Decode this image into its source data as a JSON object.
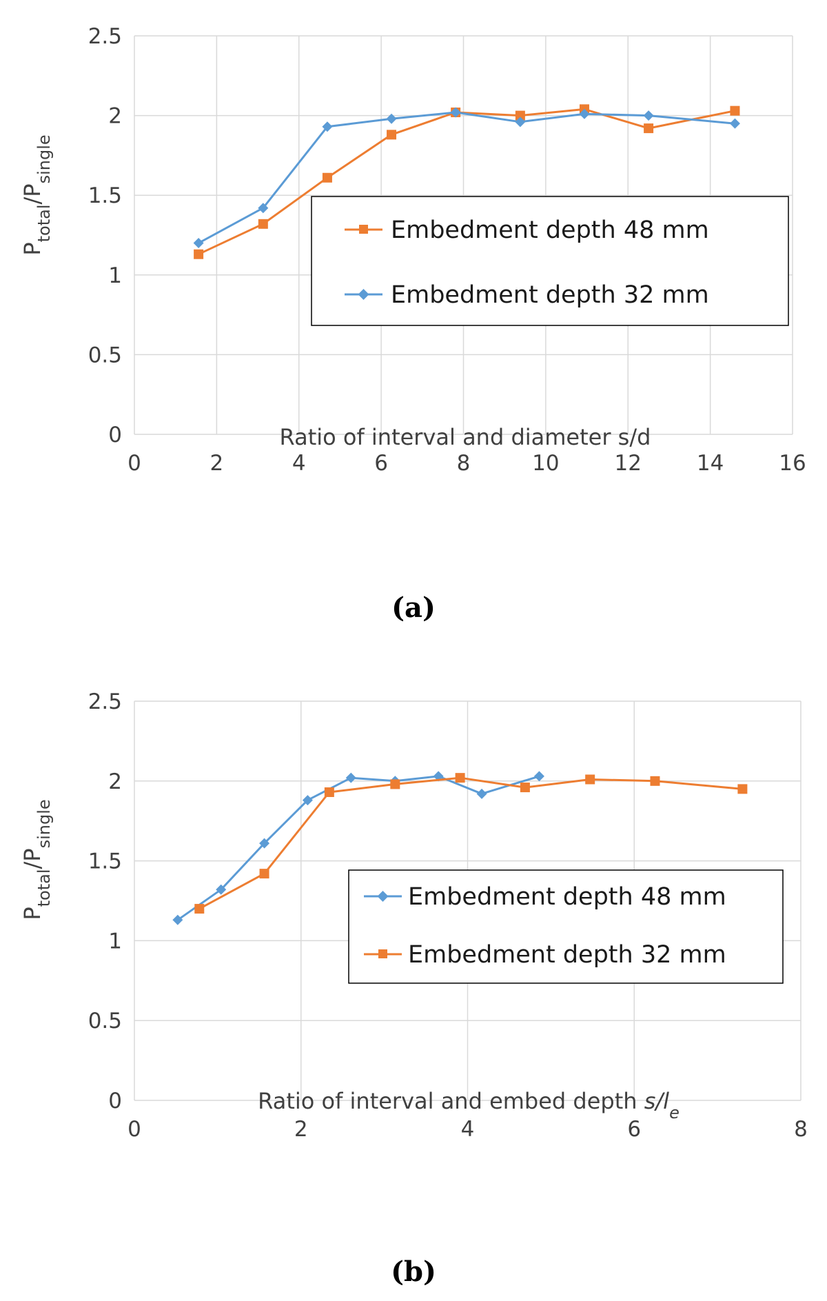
{
  "chart_data": [
    {
      "type": "line",
      "panel_label": "a",
      "panel_label_text": "(a)",
      "xlabel": "Ratio of interval and diameter s/d",
      "ylabel": "P_total/P_single",
      "ylabel_parts": {
        "main": "P",
        "sub1": "total",
        "slash": "/P",
        "sub2": "single"
      },
      "xlim": [
        0,
        16
      ],
      "ylim": [
        0,
        2.5
      ],
      "xticks": [
        0,
        2,
        4,
        6,
        8,
        10,
        12,
        14,
        16
      ],
      "xtick_labels": [
        "0",
        "2",
        "4",
        "6",
        "8",
        "10",
        "12",
        "14",
        "16"
      ],
      "yticks": [
        0,
        0.5,
        1,
        1.5,
        2,
        2.5
      ],
      "ytick_labels": [
        "0",
        "0.5",
        "1",
        "1.5",
        "2",
        "2.5"
      ],
      "grid": true,
      "legend_position": "center-right",
      "series": [
        {
          "name": "Embedment depth 48 mm",
          "marker": "square",
          "color": "#ED7D31",
          "x": [
            1.56,
            3.13,
            4.69,
            6.25,
            7.81,
            9.38,
            10.94,
            12.5,
            14.6
          ],
          "y": [
            1.13,
            1.32,
            1.61,
            1.88,
            2.02,
            2.0,
            2.04,
            1.92,
            2.03
          ]
        },
        {
          "name": "Embedment depth 32 mm",
          "marker": "diamond",
          "color": "#5B9BD5",
          "x": [
            1.56,
            3.13,
            4.69,
            6.25,
            7.81,
            9.38,
            10.94,
            12.5,
            14.6
          ],
          "y": [
            1.2,
            1.42,
            1.93,
            1.98,
            2.02,
            1.96,
            2.01,
            2.0,
            1.95
          ]
        }
      ]
    },
    {
      "type": "line",
      "panel_label": "b",
      "panel_label_text": "(b)",
      "xlabel": "Ratio of interval and embed depth s/le",
      "xlabel_parts": {
        "main": "Ratio of interval and embed depth ",
        "italic": "s/l",
        "sub": "e"
      },
      "ylabel": "P_total/P_single",
      "ylabel_parts": {
        "main": "P",
        "sub1": "total",
        "slash": "/P",
        "sub2": "single"
      },
      "xlim": [
        0,
        8
      ],
      "ylim": [
        0,
        2.5
      ],
      "xticks": [
        0,
        2,
        4,
        6,
        8
      ],
      "xtick_labels": [
        "0",
        "2",
        "4",
        "6",
        "8"
      ],
      "yticks": [
        0,
        0.5,
        1,
        1.5,
        2,
        2.5
      ],
      "ytick_labels": [
        "0",
        "0.5",
        "1",
        "1.5",
        "2",
        "2.5"
      ],
      "grid": true,
      "legend_position": "center-right",
      "series": [
        {
          "name": "Embedment depth 48 mm",
          "marker": "diamond",
          "color": "#5B9BD5",
          "x": [
            0.52,
            1.04,
            1.56,
            2.08,
            2.6,
            3.13,
            3.65,
            4.17,
            4.86
          ],
          "y": [
            1.13,
            1.32,
            1.61,
            1.88,
            2.02,
            2.0,
            2.03,
            1.92,
            2.03
          ]
        },
        {
          "name": "Embedment depth 32 mm",
          "marker": "square",
          "color": "#ED7D31",
          "x": [
            0.78,
            1.56,
            2.34,
            3.13,
            3.91,
            4.69,
            5.47,
            6.25,
            7.3
          ],
          "y": [
            1.2,
            1.42,
            1.93,
            1.98,
            2.02,
            1.96,
            2.01,
            2.0,
            1.95
          ]
        }
      ]
    }
  ]
}
